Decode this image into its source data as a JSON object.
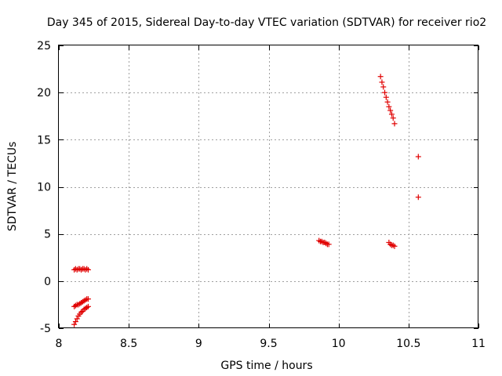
{
  "chart_data": {
    "type": "scatter",
    "title": "Day 345 of 2015, Sidereal Day-to-day VTEC variation (SDTVAR) for receiver rio2",
    "xlabel": "GPS time / hours",
    "ylabel": "SDTVAR / TECUs",
    "xlim": [
      8,
      11
    ],
    "ylim": [
      -5,
      25
    ],
    "x_ticks": [
      8,
      8.5,
      9,
      9.5,
      10,
      10.5,
      11
    ],
    "x_tick_labels": [
      "8",
      "8.5",
      "9",
      "9.5",
      "10",
      "10.5",
      "11"
    ],
    "y_ticks": [
      -5,
      0,
      5,
      10,
      15,
      20,
      25
    ],
    "y_tick_labels": [
      "-5",
      "0",
      "5",
      "10",
      "15",
      "20",
      "25"
    ],
    "grid": true,
    "marker": "+",
    "color": "#e00000",
    "series": [
      {
        "name": "SDTVAR",
        "points": [
          [
            8.11,
            1.2
          ],
          [
            8.12,
            1.3
          ],
          [
            8.13,
            1.2
          ],
          [
            8.14,
            1.3
          ],
          [
            8.15,
            1.3
          ],
          [
            8.16,
            1.2
          ],
          [
            8.17,
            1.3
          ],
          [
            8.18,
            1.3
          ],
          [
            8.19,
            1.2
          ],
          [
            8.2,
            1.3
          ],
          [
            8.21,
            1.2
          ],
          [
            8.11,
            -2.7
          ],
          [
            8.12,
            -2.6
          ],
          [
            8.13,
            -2.5
          ],
          [
            8.14,
            -2.5
          ],
          [
            8.15,
            -2.4
          ],
          [
            8.16,
            -2.3
          ],
          [
            8.17,
            -2.2
          ],
          [
            8.18,
            -2.1
          ],
          [
            8.19,
            -2.0
          ],
          [
            8.2,
            -1.9
          ],
          [
            8.21,
            -1.9
          ],
          [
            8.11,
            -4.6
          ],
          [
            8.12,
            -4.3
          ],
          [
            8.13,
            -4.0
          ],
          [
            8.14,
            -3.7
          ],
          [
            8.15,
            -3.5
          ],
          [
            8.16,
            -3.3
          ],
          [
            8.17,
            -3.2
          ],
          [
            8.18,
            -3.0
          ],
          [
            8.19,
            -2.9
          ],
          [
            8.2,
            -2.8
          ],
          [
            8.21,
            -2.7
          ],
          [
            9.86,
            4.3
          ],
          [
            9.87,
            4.2
          ],
          [
            9.88,
            4.2
          ],
          [
            9.89,
            4.1
          ],
          [
            9.9,
            4.1
          ],
          [
            9.91,
            4.0
          ],
          [
            9.92,
            3.9
          ],
          [
            9.93,
            3.9
          ],
          [
            10.3,
            21.7
          ],
          [
            10.31,
            21.1
          ],
          [
            10.32,
            20.6
          ],
          [
            10.33,
            20.0
          ],
          [
            10.34,
            19.5
          ],
          [
            10.35,
            19.0
          ],
          [
            10.36,
            18.5
          ],
          [
            10.37,
            18.1
          ],
          [
            10.38,
            17.7
          ],
          [
            10.39,
            17.3
          ],
          [
            10.4,
            16.7
          ],
          [
            10.36,
            4.1
          ],
          [
            10.37,
            3.9
          ],
          [
            10.38,
            3.8
          ],
          [
            10.39,
            3.8
          ],
          [
            10.4,
            3.7
          ],
          [
            10.57,
            13.2
          ],
          [
            10.57,
            8.9
          ]
        ]
      }
    ]
  }
}
